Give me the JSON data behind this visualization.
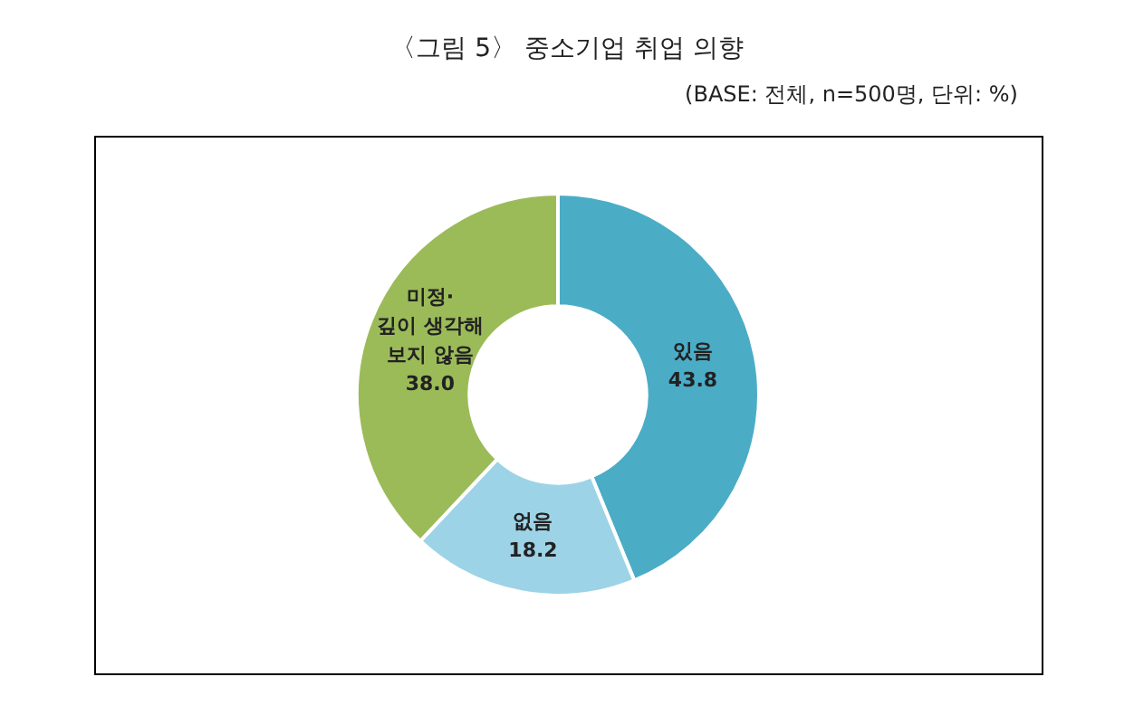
{
  "chart_data": {
    "type": "donut",
    "title": "〈그림 5〉 중소기업 취업 의향",
    "subtitle": "(BASE: 전체, n=500명, 단위: %)",
    "categories": [
      "있음",
      "없음",
      "미정·\n깊이 생각해\n보지 않음"
    ],
    "values": [
      43.8,
      18.2,
      38.0
    ],
    "colors": [
      "#4bacc6",
      "#9dd3e6",
      "#9bbb59"
    ],
    "value_labels": [
      "43.8",
      "18.2",
      "38.0"
    ],
    "legend": false
  }
}
